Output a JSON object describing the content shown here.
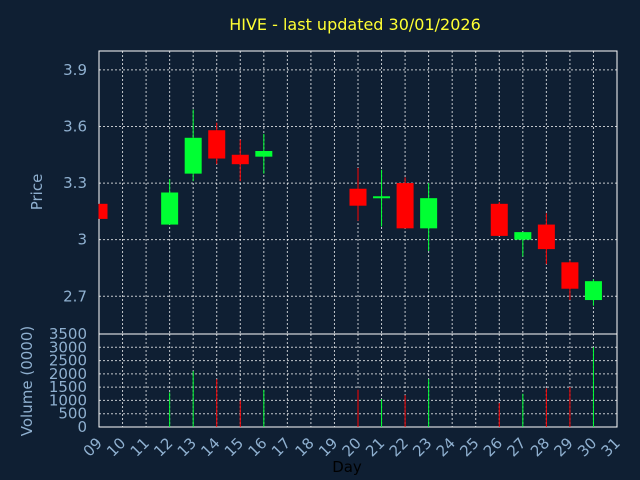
{
  "chart_data": {
    "type": "candlestick",
    "title": "HIVE - last updated 30/01/2026",
    "xlabel": "Day",
    "price_panel": {
      "ylabel": "Price",
      "ylim": [
        2.5,
        4.0
      ],
      "yticks": [
        "2.7",
        "3",
        "3.3",
        "3.6",
        "3.9"
      ],
      "ytick_values": [
        2.7,
        3.0,
        3.3,
        3.6,
        3.9
      ],
      "grid": true
    },
    "volume_panel": {
      "ylabel": "Volume (0000)",
      "ylim": [
        0,
        3500
      ],
      "yticks": [
        "0",
        "500",
        "1000",
        "1500",
        "2000",
        "2500",
        "3000",
        "3500"
      ],
      "ytick_values": [
        0,
        500,
        1000,
        1500,
        2000,
        2500,
        3000,
        3500
      ],
      "grid": true
    },
    "x_days": [
      "09",
      "10",
      "11",
      "12",
      "13",
      "14",
      "15",
      "16",
      "17",
      "18",
      "19",
      "20",
      "21",
      "22",
      "23",
      "24",
      "25",
      "26",
      "27",
      "28",
      "29",
      "30",
      "31"
    ],
    "candles": [
      {
        "day": "09",
        "open": 3.19,
        "close": 3.11,
        "high": 3.19,
        "low": 3.11,
        "volume": 0
      },
      {
        "day": "12",
        "open": 3.08,
        "close": 3.25,
        "high": 3.32,
        "low": 3.08,
        "volume": 1300
      },
      {
        "day": "13",
        "open": 3.35,
        "close": 3.54,
        "high": 3.69,
        "low": 3.31,
        "volume": 2100
      },
      {
        "day": "14",
        "open": 3.58,
        "close": 3.43,
        "high": 3.62,
        "low": 3.4,
        "volume": 1800
      },
      {
        "day": "15",
        "open": 3.45,
        "close": 3.4,
        "high": 3.53,
        "low": 3.31,
        "volume": 1000
      },
      {
        "day": "16",
        "open": 3.44,
        "close": 3.47,
        "high": 3.56,
        "low": 3.35,
        "volume": 1400
      },
      {
        "day": "20",
        "open": 3.27,
        "close": 3.18,
        "high": 3.38,
        "low": 3.1,
        "volume": 1400
      },
      {
        "day": "21",
        "open": 3.22,
        "close": 3.23,
        "high": 3.37,
        "low": 3.07,
        "volume": 1050
      },
      {
        "day": "22",
        "open": 3.3,
        "close": 3.06,
        "high": 3.33,
        "low": 3.06,
        "volume": 1200
      },
      {
        "day": "23",
        "open": 3.06,
        "close": 3.22,
        "high": 3.3,
        "low": 2.94,
        "volume": 1800
      },
      {
        "day": "26",
        "open": 3.19,
        "close": 3.02,
        "high": 3.2,
        "low": 3.02,
        "volume": 900
      },
      {
        "day": "27",
        "open": 3.0,
        "close": 3.04,
        "high": 3.04,
        "low": 2.91,
        "volume": 1250
      },
      {
        "day": "28",
        "open": 3.08,
        "close": 2.95,
        "high": 3.14,
        "low": 2.87,
        "volume": 1450
      },
      {
        "day": "29",
        "open": 2.88,
        "close": 2.74,
        "high": 2.89,
        "low": 2.68,
        "volume": 1500
      },
      {
        "day": "30",
        "open": 2.68,
        "close": 2.78,
        "high": 2.79,
        "low": 2.65,
        "volume": 3000
      }
    ],
    "colors": {
      "background": "#0f1f33",
      "up": "#00ff33",
      "down": "#ff0000",
      "text": "#8fb0d0",
      "title": "#ffff33"
    }
  }
}
